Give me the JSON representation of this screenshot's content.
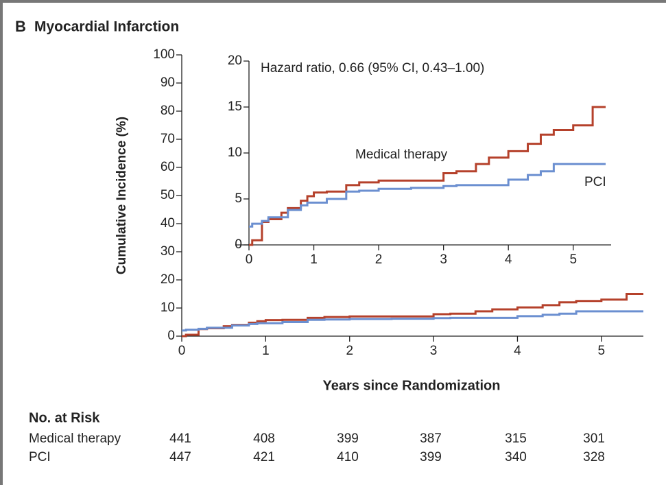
{
  "panel_label": "B",
  "title": "Myocardial Infarction",
  "chart_data": [
    {
      "type": "line",
      "step": true,
      "ylabel": "Cumulative Incidence (%)",
      "xlabel": "Years since Randomization",
      "x": [
        0,
        0.05,
        0.2,
        0.3,
        0.5,
        0.6,
        0.8,
        0.9,
        1.0,
        1.2,
        1.5,
        1.7,
        2.0,
        2.5,
        3.0,
        3.2,
        3.5,
        3.7,
        4.0,
        4.3,
        4.5,
        4.7,
        5.0,
        5.3,
        5.5
      ],
      "series": [
        {
          "color": "#b5412b",
          "values": [
            0,
            0.5,
            2.5,
            2.8,
            3.5,
            4,
            4.8,
            5.3,
            5.7,
            5.8,
            6.5,
            6.8,
            7.0,
            7.0,
            7.8,
            8.0,
            8.8,
            9.5,
            10.2,
            11.0,
            12.0,
            12.5,
            13.0,
            15.0,
            15.0
          ]
        },
        {
          "color": "#6b8fd0",
          "values": [
            2.0,
            2.3,
            2.6,
            3.0,
            3.0,
            3.8,
            4.3,
            4.6,
            4.6,
            5.0,
            5.8,
            5.9,
            6.1,
            6.2,
            6.4,
            6.5,
            6.5,
            6.5,
            7.1,
            7.6,
            8.0,
            8.8,
            8.8,
            8.8,
            8.8
          ]
        }
      ],
      "xlim": [
        0,
        5.5
      ],
      "ylim": [
        0,
        100
      ],
      "xticks": [
        0,
        1,
        2,
        3,
        4,
        5
      ],
      "yticks": [
        0,
        10,
        20,
        30,
        40,
        50,
        60,
        70,
        80,
        90,
        100
      ]
    },
    {
      "type": "line",
      "step": true,
      "annotation": "Hazard ratio, 0.66 (95% CI, 0.43–1.00)",
      "x": [
        0,
        0.05,
        0.2,
        0.3,
        0.5,
        0.6,
        0.8,
        0.9,
        1.0,
        1.2,
        1.5,
        1.7,
        2.0,
        2.5,
        3.0,
        3.2,
        3.5,
        3.7,
        4.0,
        4.3,
        4.5,
        4.7,
        5.0,
        5.3,
        5.5
      ],
      "series": [
        {
          "name": "Medical therapy",
          "color": "#b5412b",
          "values": [
            0,
            0.5,
            2.5,
            2.8,
            3.5,
            4,
            4.8,
            5.3,
            5.7,
            5.8,
            6.5,
            6.8,
            7.0,
            7.0,
            7.8,
            8.0,
            8.8,
            9.5,
            10.2,
            11.0,
            12.0,
            12.5,
            13.0,
            15.0,
            15.0
          ]
        },
        {
          "name": "PCI",
          "color": "#6b8fd0",
          "values": [
            2.0,
            2.3,
            2.6,
            3.0,
            3.0,
            3.8,
            4.3,
            4.6,
            4.6,
            5.0,
            5.8,
            5.9,
            6.1,
            6.2,
            6.4,
            6.5,
            6.5,
            6.5,
            7.1,
            7.6,
            8.0,
            8.8,
            8.8,
            8.8,
            8.8
          ]
        }
      ],
      "xlim": [
        0,
        5.5
      ],
      "ylim": [
        0,
        20
      ],
      "xticks": [
        0,
        1,
        2,
        3,
        4,
        5
      ],
      "yticks": [
        0,
        5,
        10,
        15,
        20
      ]
    }
  ],
  "risk_table": {
    "title": "No. at Risk",
    "rows": [
      {
        "label": "Medical therapy",
        "values": [
          441,
          408,
          399,
          387,
          315,
          301
        ]
      },
      {
        "label": "PCI",
        "values": [
          447,
          421,
          410,
          399,
          340,
          328
        ]
      }
    ]
  }
}
